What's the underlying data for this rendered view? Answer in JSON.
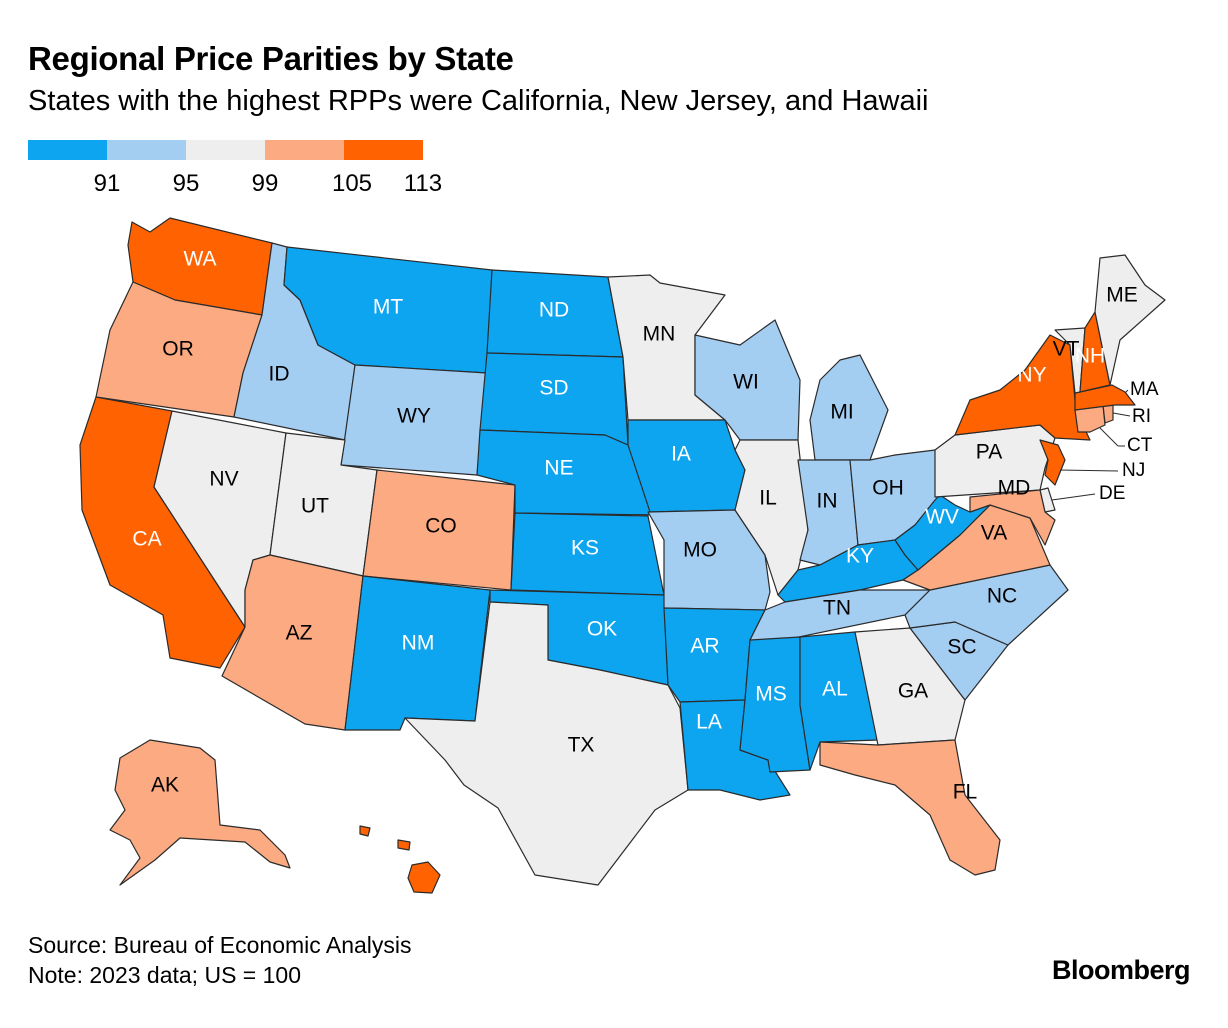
{
  "title": "Regional Price Parities by State",
  "subtitle": "States with the highest RPPs were California, New Jersey, and Hawaii",
  "legend": {
    "colors": [
      "#0ea5f0",
      "#a4cdf2",
      "#eeeeee",
      "#fcaa82",
      "#ff6200"
    ],
    "ticks": [
      "91",
      "95",
      "99",
      "105",
      "113"
    ]
  },
  "states": [
    {
      "abbr": "WA",
      "bin": 4
    },
    {
      "abbr": "OR",
      "bin": 3
    },
    {
      "abbr": "CA",
      "bin": 4
    },
    {
      "abbr": "NV",
      "bin": 2
    },
    {
      "abbr": "ID",
      "bin": 1
    },
    {
      "abbr": "MT",
      "bin": 0
    },
    {
      "abbr": "WY",
      "bin": 1
    },
    {
      "abbr": "UT",
      "bin": 2
    },
    {
      "abbr": "AZ",
      "bin": 3
    },
    {
      "abbr": "CO",
      "bin": 3
    },
    {
      "abbr": "NM",
      "bin": 0
    },
    {
      "abbr": "ND",
      "bin": 0
    },
    {
      "abbr": "SD",
      "bin": 0
    },
    {
      "abbr": "NE",
      "bin": 0
    },
    {
      "abbr": "KS",
      "bin": 0
    },
    {
      "abbr": "OK",
      "bin": 0
    },
    {
      "abbr": "TX",
      "bin": 2
    },
    {
      "abbr": "MN",
      "bin": 2
    },
    {
      "abbr": "IA",
      "bin": 0
    },
    {
      "abbr": "MO",
      "bin": 1
    },
    {
      "abbr": "AR",
      "bin": 0
    },
    {
      "abbr": "LA",
      "bin": 0
    },
    {
      "abbr": "WI",
      "bin": 1
    },
    {
      "abbr": "IL",
      "bin": 2
    },
    {
      "abbr": "MI",
      "bin": 1
    },
    {
      "abbr": "IN",
      "bin": 1
    },
    {
      "abbr": "OH",
      "bin": 1
    },
    {
      "abbr": "KY",
      "bin": 0
    },
    {
      "abbr": "TN",
      "bin": 1
    },
    {
      "abbr": "MS",
      "bin": 0
    },
    {
      "abbr": "AL",
      "bin": 0
    },
    {
      "abbr": "GA",
      "bin": 2
    },
    {
      "abbr": "FL",
      "bin": 3
    },
    {
      "abbr": "SC",
      "bin": 1
    },
    {
      "abbr": "NC",
      "bin": 1
    },
    {
      "abbr": "VA",
      "bin": 3
    },
    {
      "abbr": "WV",
      "bin": 0
    },
    {
      "abbr": "PA",
      "bin": 2
    },
    {
      "abbr": "NY",
      "bin": 4
    },
    {
      "abbr": "NJ",
      "bin": 4
    },
    {
      "abbr": "DE",
      "bin": 2
    },
    {
      "abbr": "MD",
      "bin": 3
    },
    {
      "abbr": "CT",
      "bin": 3
    },
    {
      "abbr": "RI",
      "bin": 3
    },
    {
      "abbr": "MA",
      "bin": 4
    },
    {
      "abbr": "VT",
      "bin": 2
    },
    {
      "abbr": "NH",
      "bin": 4
    },
    {
      "abbr": "ME",
      "bin": 2
    },
    {
      "abbr": "AK",
      "bin": 3
    },
    {
      "abbr": "HI",
      "bin": 4
    }
  ],
  "footer": {
    "source": "Source: Bureau of Economic Analysis",
    "note": "Note: 2023 data; US = 100"
  },
  "brand": "Bloomberg"
}
